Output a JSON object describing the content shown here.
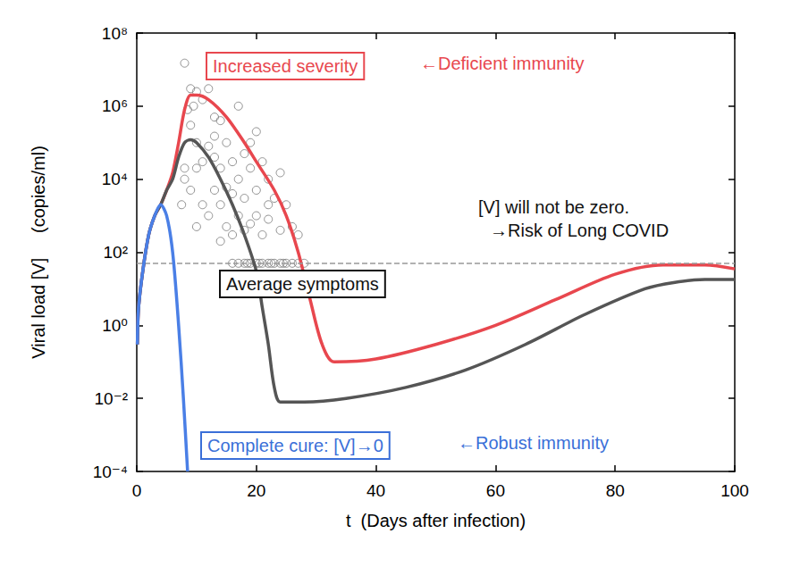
{
  "chart_data": {
    "type": "line",
    "log": "y",
    "grid": false,
    "x_label": "t  (Days after infection)",
    "y_label": "Viral load [V]     (copies/ml)",
    "xlim": [
      0,
      100
    ],
    "xticks": [
      0,
      20,
      40,
      60,
      80,
      100
    ],
    "ylim": [
      0.0001,
      100000000
    ],
    "yticks": [
      {
        "value": 0.0001,
        "label": "10⁻⁴"
      },
      {
        "value": 0.01,
        "label": "10⁻²"
      },
      {
        "value": 1,
        "label": "10⁰"
      },
      {
        "value": 100,
        "label": "10²"
      },
      {
        "value": 10000,
        "label": "10⁴"
      },
      {
        "value": 1000000,
        "label": "10⁶"
      },
      {
        "value": 100000000,
        "label": "10⁸"
      }
    ],
    "hline": {
      "value": 50,
      "line_style": "dashed",
      "color": "#999999"
    },
    "series": [
      {
        "type": "scatter",
        "marker": "open_circle",
        "color": "#777777",
        "x": [
          8,
          9,
          10,
          8.5,
          9.5,
          11,
          12,
          13,
          12,
          9,
          10,
          8,
          7.5,
          8,
          9,
          10,
          11,
          11,
          12,
          13,
          13,
          14,
          14,
          15,
          15,
          15,
          16,
          16,
          17,
          17,
          18,
          18,
          19,
          19,
          20,
          20,
          21,
          21,
          22,
          22,
          23,
          24,
          24,
          25,
          26,
          27,
          10,
          14,
          16,
          18,
          20,
          17,
          13,
          14,
          19,
          22,
          16,
          17,
          18,
          18.5,
          19,
          20,
          20.5,
          21,
          22,
          22.5,
          23,
          24,
          24.5,
          25,
          26,
          27,
          28
        ],
        "values": [
          15000000,
          3000000,
          2500000,
          800000,
          1000000,
          1500000,
          3000000,
          500000,
          80000,
          300000,
          100000,
          20000,
          2000,
          10000,
          5000,
          20000,
          30000,
          2000,
          1000,
          40000,
          5000,
          20000,
          2000,
          100000,
          6000,
          500,
          30000,
          4000,
          10000,
          1000,
          50000,
          3000,
          20000,
          600,
          5000,
          1000,
          30000,
          300,
          10000,
          800,
          3000,
          15000,
          400,
          2000,
          500,
          300,
          500,
          200,
          300,
          400,
          200000,
          1000000,
          150000,
          400000,
          100000,
          2000,
          50,
          50,
          50,
          50,
          50,
          50,
          50,
          50,
          50,
          50,
          50,
          50,
          50,
          50,
          50,
          50,
          50
        ]
      },
      {
        "type": "line",
        "line_style": "solid",
        "color": "#e8474e",
        "x": [
          0.1,
          0.3,
          1,
          2,
          3,
          4,
          5,
          6,
          7,
          8,
          9,
          10,
          12,
          15,
          18,
          20,
          23,
          25,
          27,
          29,
          31,
          33,
          40,
          50,
          60,
          70,
          80,
          88,
          95,
          100
        ],
        "values": [
          0.3,
          3,
          30,
          300,
          1000,
          2000,
          5000,
          15000,
          100000,
          800000,
          2000000,
          2000000,
          1500000,
          500000,
          100000,
          30000,
          5000,
          1000,
          100,
          5,
          0.3,
          0.1,
          0.12,
          0.3,
          1,
          5,
          25,
          45,
          45,
          35
        ]
      },
      {
        "type": "line",
        "line_style": "solid",
        "color": "#555555",
        "x": [
          0.1,
          0.3,
          1,
          2,
          3,
          4,
          5,
          6,
          7,
          8,
          9,
          10,
          12,
          14,
          16,
          18,
          20,
          21,
          22,
          23,
          24,
          28,
          35,
          45,
          55,
          65,
          75,
          85,
          90,
          95,
          100
        ],
        "values": [
          0.3,
          3,
          30,
          300,
          1000,
          2000,
          5000,
          10000,
          40000,
          100000,
          120000,
          100000,
          40000,
          10000,
          2000,
          300,
          30,
          3,
          0.3,
          0.02,
          0.008,
          0.008,
          0.01,
          0.02,
          0.06,
          0.3,
          2,
          10,
          15,
          18,
          18
        ]
      },
      {
        "type": "line",
        "line_style": "solid",
        "color": "#4a7fe6",
        "x": [
          0.1,
          0.3,
          1,
          2,
          3,
          4,
          5,
          6,
          7,
          7.8,
          8.5
        ],
        "values": [
          0.3,
          3,
          30,
          300,
          1000,
          2000,
          1000,
          100,
          1,
          0.01,
          0.0001
        ]
      }
    ],
    "annotations": [
      {
        "text": "Increased severity",
        "color": "#e8474e"
      },
      {
        "text": "←Deficient immunity",
        "color": "#e8474e"
      },
      {
        "text": "[V] will not be zero.",
        "color": "#111111"
      },
      {
        "text": "→Risk of Long COVID",
        "color": "#111111"
      },
      {
        "text": "Average symptoms",
        "color": "#111111"
      },
      {
        "text": "Complete cure: [V]→0",
        "color": "#3a6fd8"
      },
      {
        "text": "←Robust immunity",
        "color": "#3a6fd8"
      }
    ]
  }
}
